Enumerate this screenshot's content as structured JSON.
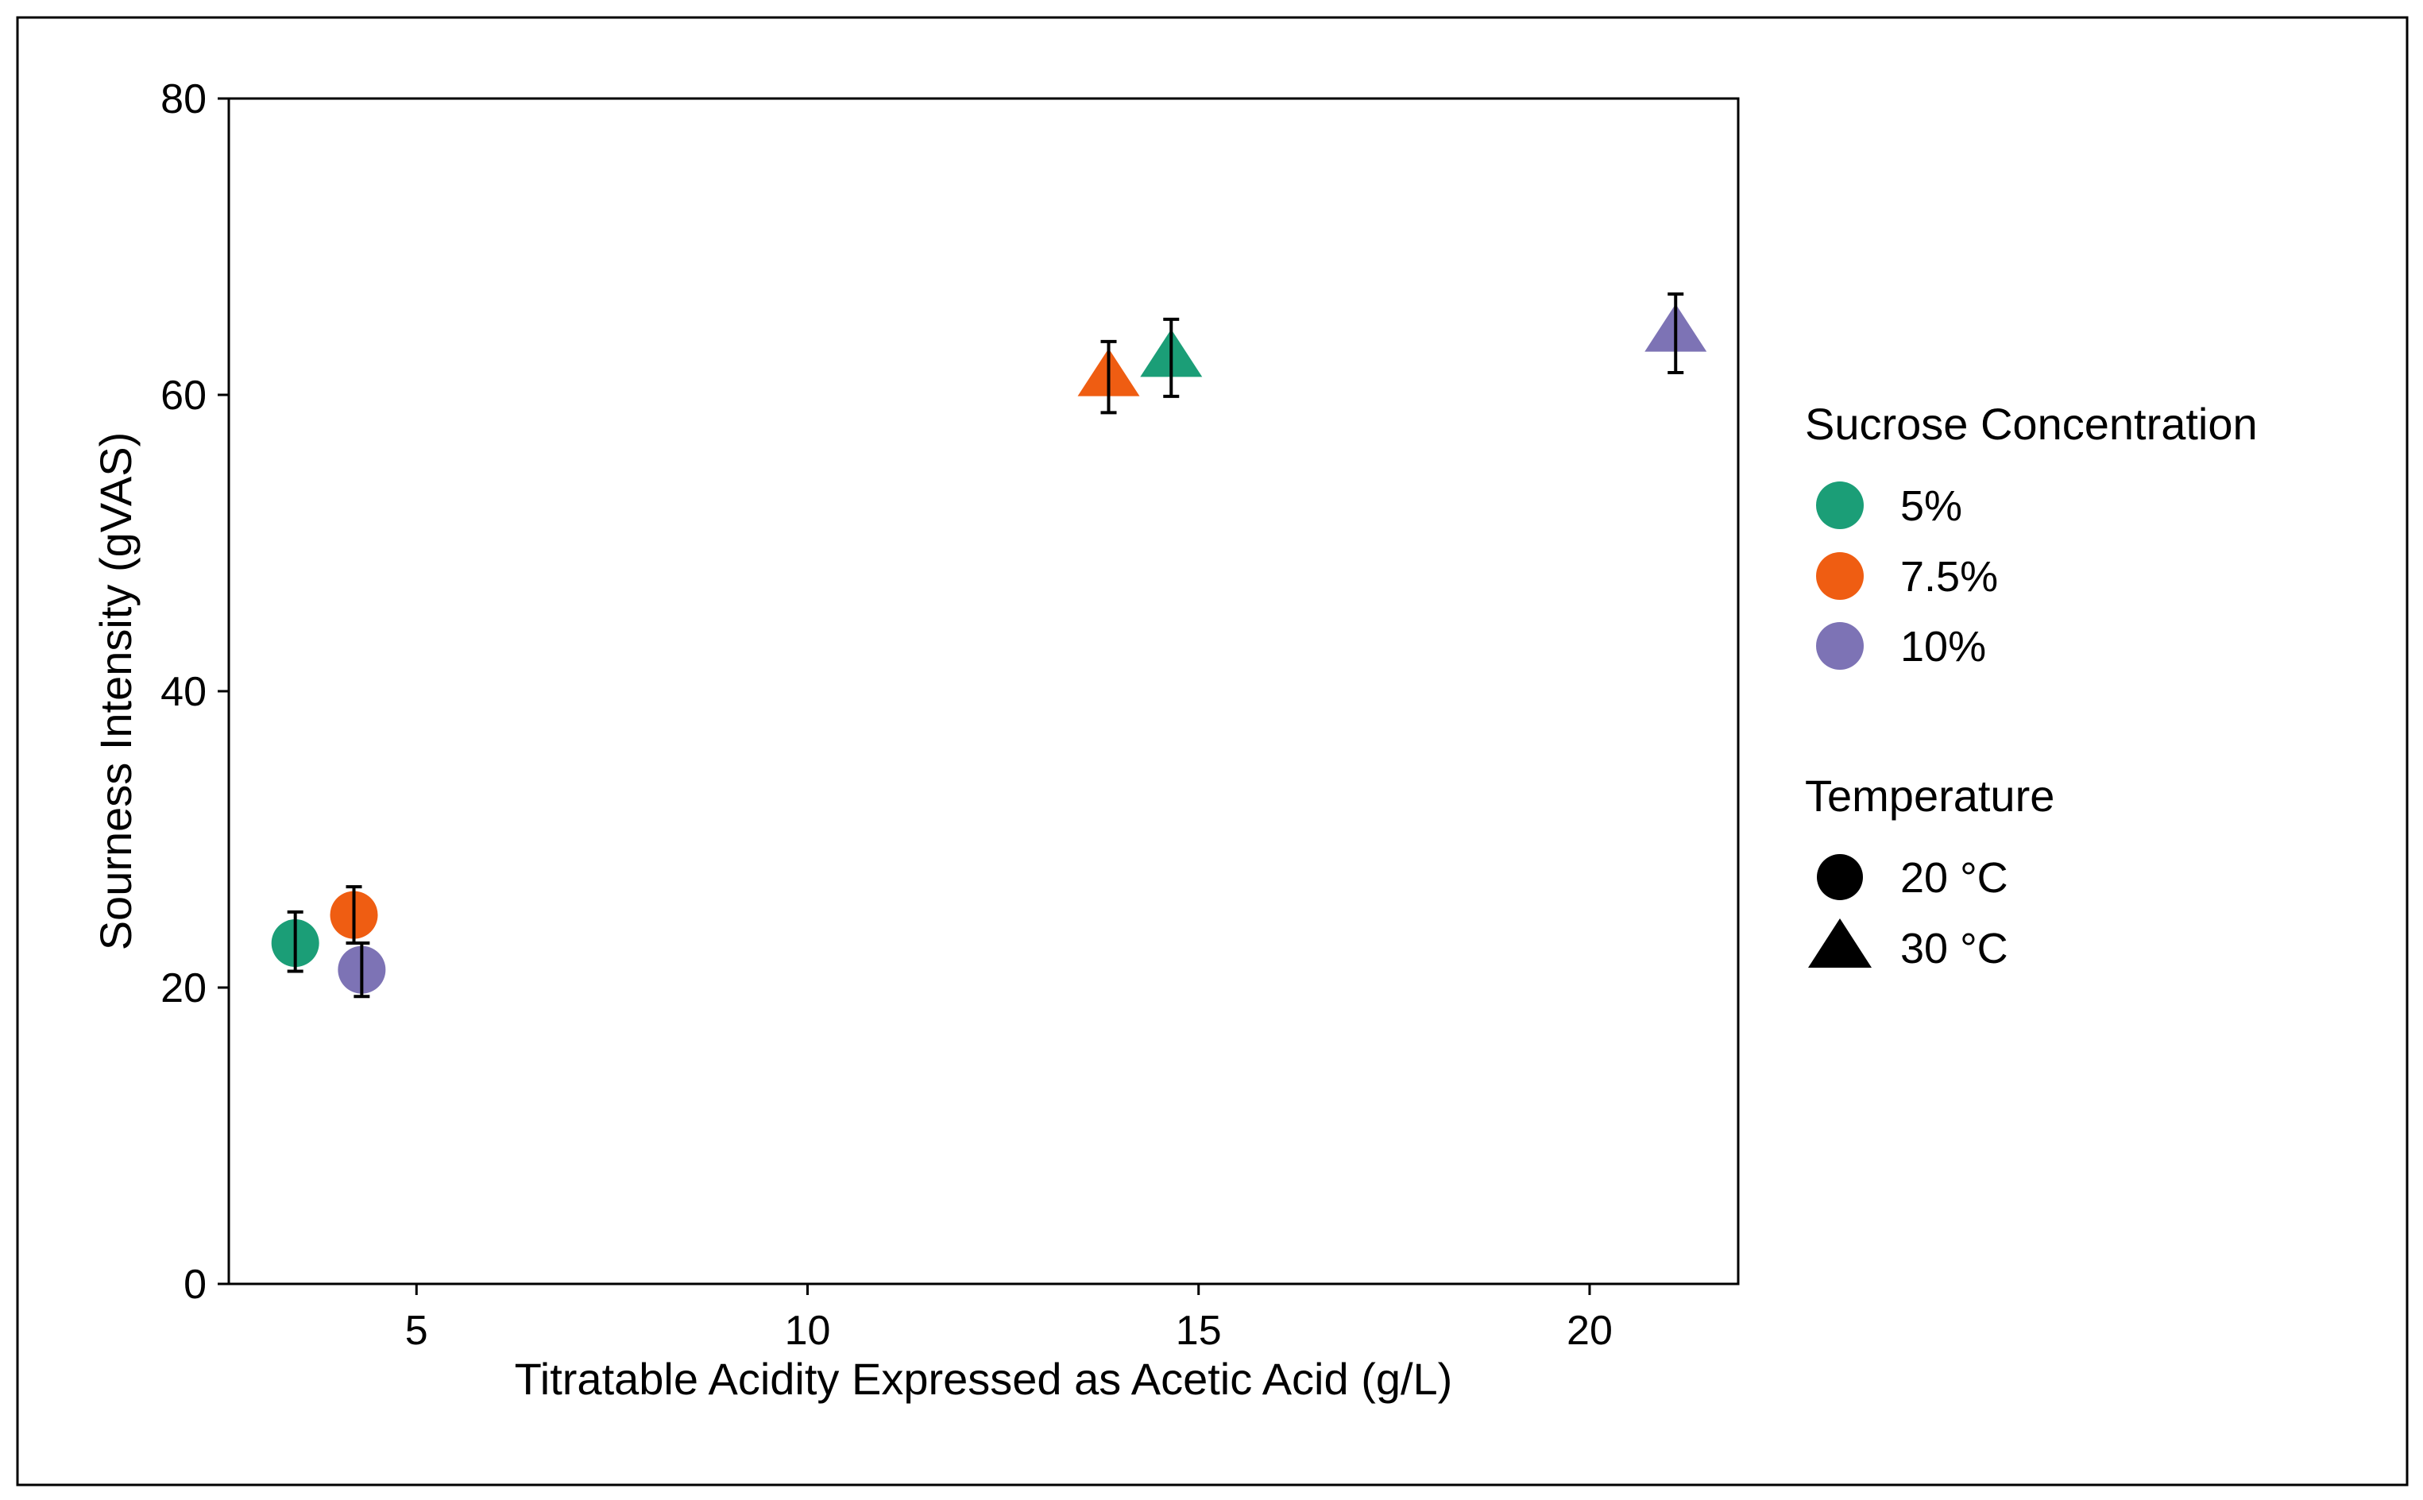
{
  "chart_data": {
    "type": "scatter",
    "title": "",
    "xlabel": "Titratable Acidity Expressed as Acetic Acid (g/L)",
    "ylabel": "Sourness Intensity (gVAS)",
    "xlim": [
      2.6,
      21.9
    ],
    "ylim": [
      0,
      80
    ],
    "xticks": [
      5,
      10,
      15,
      20
    ],
    "yticks": [
      0,
      20,
      40,
      60,
      80
    ],
    "grid": false,
    "legend": {
      "position": "right",
      "color_title": "Sucrose Concentration",
      "color_entries": [
        {
          "label": "5%",
          "color": "#1b9e77"
        },
        {
          "label": "7.5%",
          "color": "#ef5d12"
        },
        {
          "label": "10%",
          "color": "#7d73b5"
        }
      ],
      "shape_title": "Temperature",
      "shape_entries": [
        {
          "label": "20 °C",
          "shape": "circle"
        },
        {
          "label": "30 °C",
          "shape": "triangle"
        }
      ]
    },
    "series": [
      {
        "sucrose": "5%",
        "temperature": "20 °C",
        "x": 3.45,
        "y": 23.0,
        "yerr_low": 21.1,
        "yerr_high": 25.1
      },
      {
        "sucrose": "7.5%",
        "temperature": "20 °C",
        "x": 4.2,
        "y": 24.9,
        "yerr_low": 23.0,
        "yerr_high": 26.8
      },
      {
        "sucrose": "10%",
        "temperature": "20 °C",
        "x": 4.3,
        "y": 21.2,
        "yerr_low": 19.4,
        "yerr_high": 23.0
      },
      {
        "sucrose": "7.5%",
        "temperature": "30 °C",
        "x": 13.85,
        "y": 61.2,
        "yerr_low": 58.8,
        "yerr_high": 63.6
      },
      {
        "sucrose": "5%",
        "temperature": "30 °C",
        "x": 14.65,
        "y": 62.5,
        "yerr_low": 59.9,
        "yerr_high": 65.1
      },
      {
        "sucrose": "10%",
        "temperature": "30 °C",
        "x": 21.1,
        "y": 64.2,
        "yerr_low": 61.5,
        "yerr_high": 66.8
      }
    ]
  }
}
